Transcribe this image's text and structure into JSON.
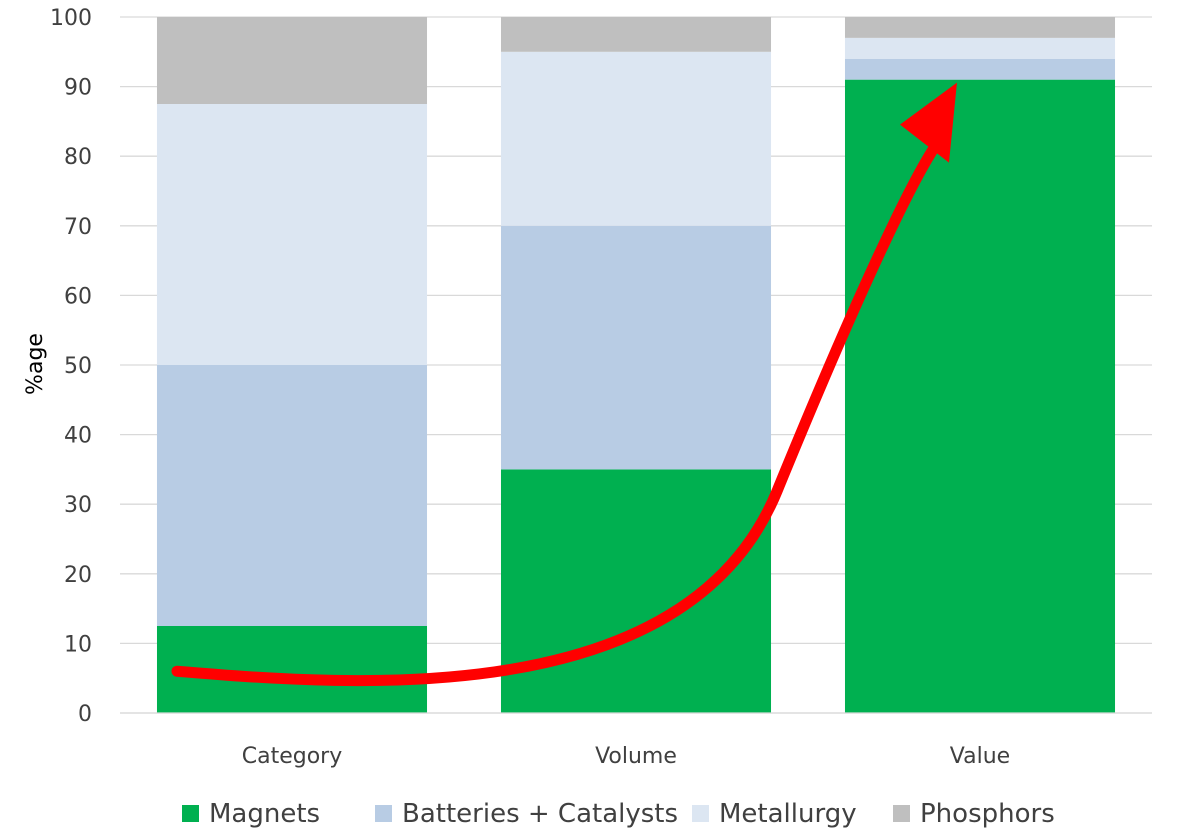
{
  "chart_data": {
    "type": "bar",
    "stacked": true,
    "categories": [
      "Category",
      "Volume",
      "Value"
    ],
    "series": [
      {
        "name": "Magnets",
        "color": "#00B050",
        "values": [
          12.5,
          35,
          91
        ]
      },
      {
        "name": "Batteries + Catalysts",
        "color": "#B8CCE4",
        "values": [
          37.5,
          35,
          3
        ]
      },
      {
        "name": "Metallurgy",
        "color": "#DCE6F2",
        "values": [
          37.5,
          25,
          3
        ]
      },
      {
        "name": "Phosphors",
        "color": "#BFBFBF",
        "values": [
          12.5,
          5,
          3
        ]
      }
    ],
    "ylabel": "%age",
    "ylim": [
      0,
      100
    ],
    "yticks": [
      0,
      10,
      20,
      30,
      40,
      50,
      60,
      70,
      80,
      90,
      100
    ],
    "grid": true,
    "legend_position": "bottom",
    "annotations": [
      {
        "type": "arrow",
        "color": "#FF0000",
        "description": "upward-curving trend arrow",
        "from": {
          "category": "Category",
          "y": 6
        },
        "to": {
          "category": "Value",
          "y": 90
        }
      }
    ]
  }
}
